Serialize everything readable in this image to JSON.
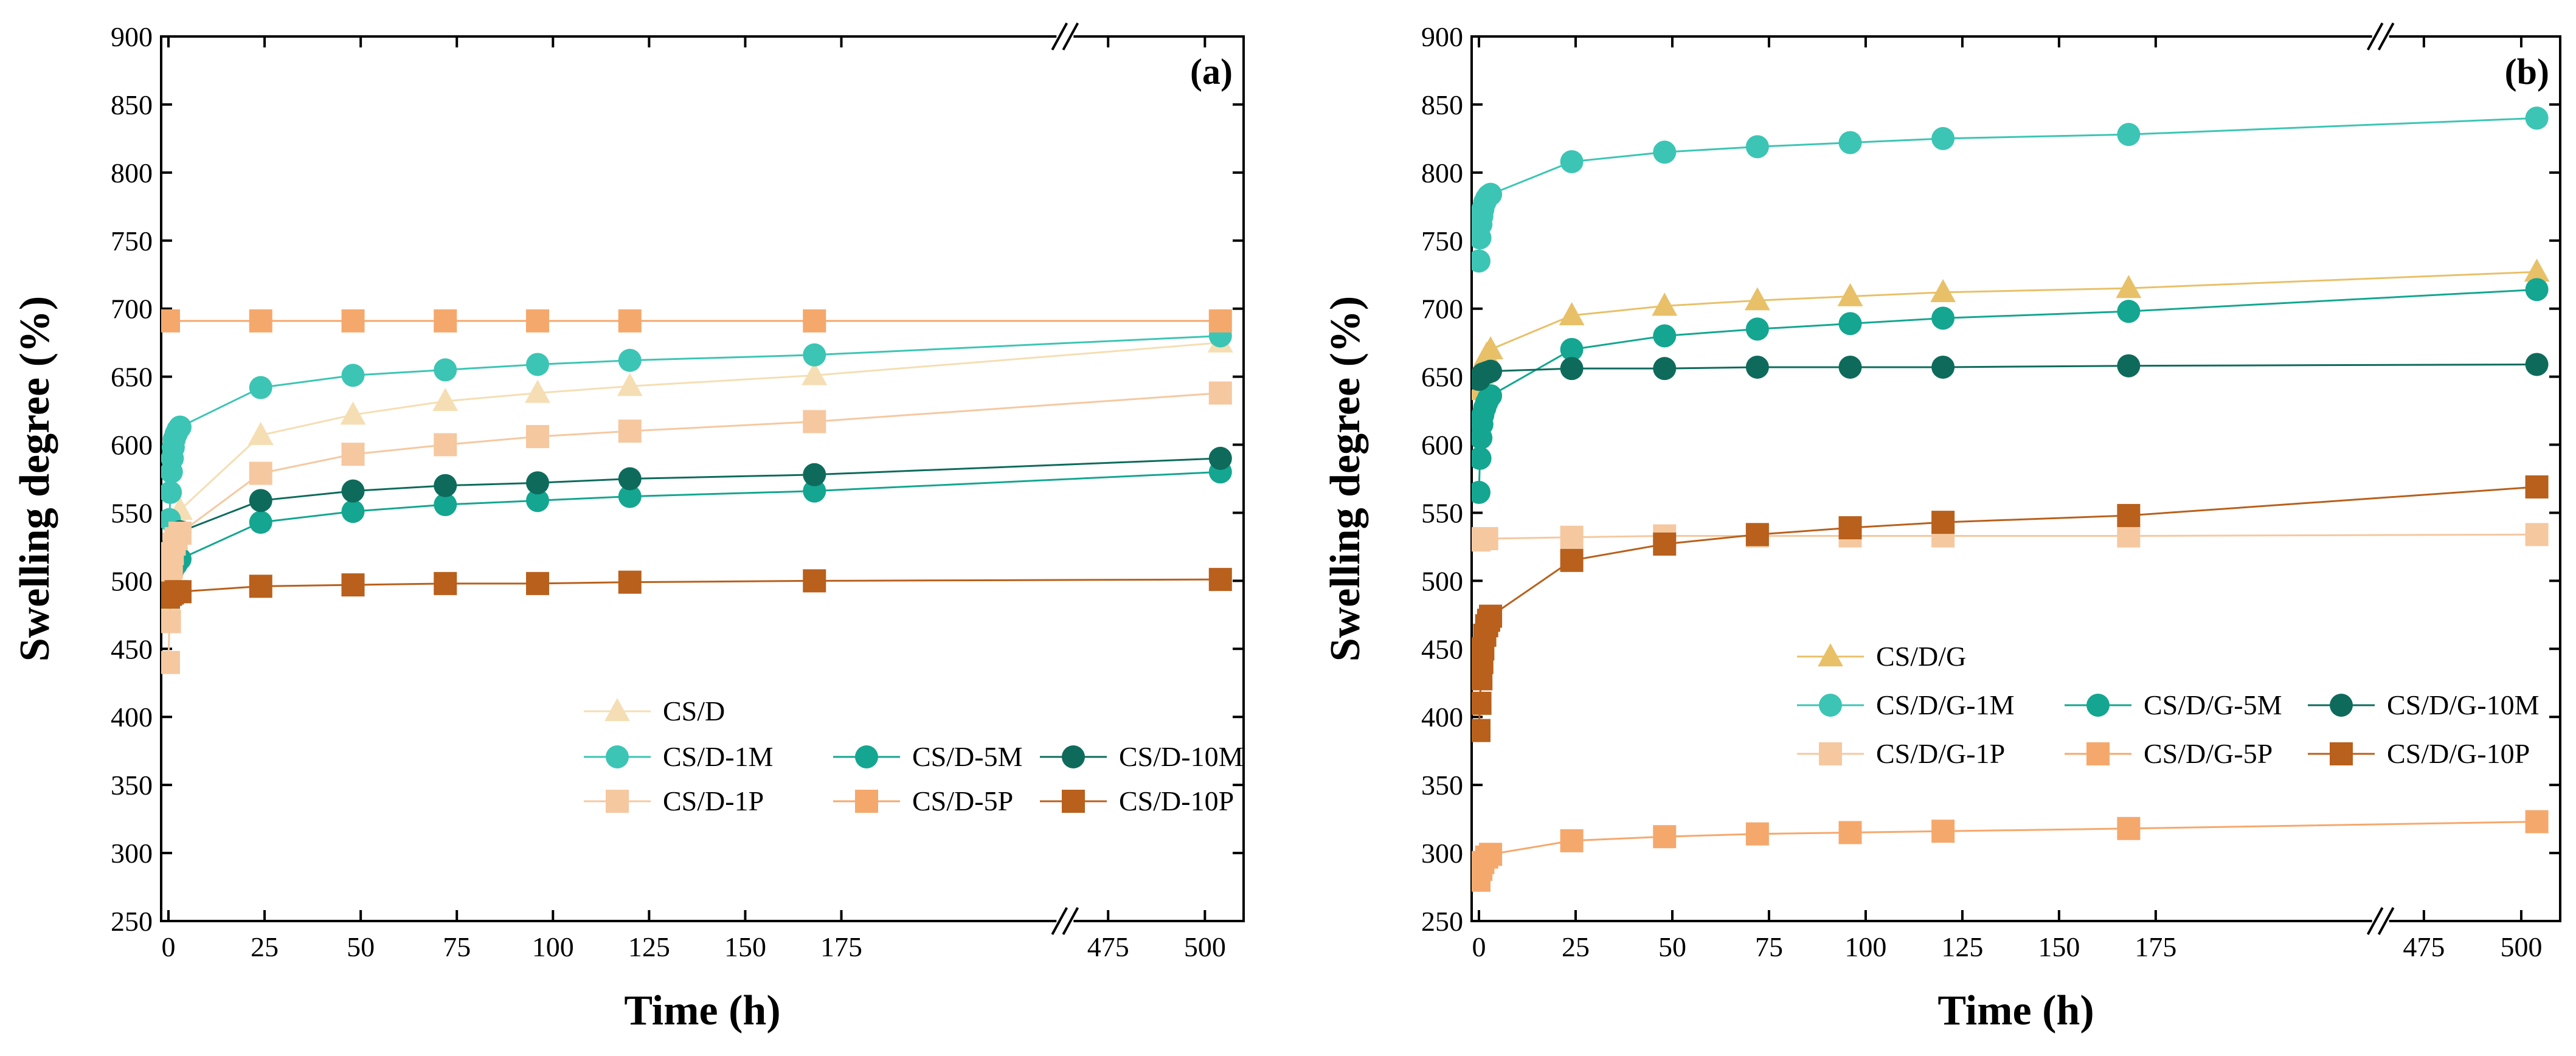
{
  "chart_data": [
    {
      "type": "line",
      "panel": "(a)",
      "xlabel": "Time (h)",
      "ylabel": "Swelling degree (%)",
      "ylim": [
        250,
        900
      ],
      "yticks": [
        250,
        300,
        350,
        400,
        450,
        500,
        550,
        600,
        650,
        700,
        750,
        800,
        850,
        900
      ],
      "xticks": [
        "0",
        "25",
        "50",
        "75",
        "100",
        "125",
        "150",
        "175",
        "475",
        "500"
      ],
      "x_break": "//",
      "legend_placement": "lower-right",
      "series": [
        {
          "name": "CS/D",
          "color": "#F5DEB3",
          "marker": "triangle",
          "points": [
            [
              0,
              485
            ],
            [
              0.25,
              495
            ],
            [
              0.5,
              505
            ],
            [
              1,
              515
            ],
            [
              1.5,
              525
            ],
            [
              2,
              535
            ],
            [
              2.5,
              545
            ],
            [
              3,
              552
            ],
            [
              24,
              607
            ],
            [
              48,
              622
            ],
            [
              72,
              632
            ],
            [
              96,
              638
            ],
            [
              120,
              643
            ],
            [
              168,
              651
            ],
            [
              504,
              675
            ]
          ]
        },
        {
          "name": "CS/D-1M",
          "color": "#3CC5B4",
          "marker": "circle",
          "points": [
            [
              0,
              520
            ],
            [
              0.25,
              545
            ],
            [
              0.5,
              565
            ],
            [
              0.75,
              580
            ],
            [
              1,
              590
            ],
            [
              1.25,
              598
            ],
            [
              1.5,
              604
            ],
            [
              2,
              608
            ],
            [
              2.5,
              611
            ],
            [
              3,
              613
            ],
            [
              24,
              642
            ],
            [
              48,
              651
            ],
            [
              72,
              655
            ],
            [
              96,
              659
            ],
            [
              120,
              662
            ],
            [
              168,
              666
            ],
            [
              504,
              680
            ]
          ]
        },
        {
          "name": "CS/D-5M",
          "color": "#14A690",
          "marker": "circle",
          "points": [
            [
              0,
              490
            ],
            [
              0.25,
              497
            ],
            [
              0.5,
              502
            ],
            [
              1,
              507
            ],
            [
              2,
              512
            ],
            [
              3,
              516
            ],
            [
              24,
              543
            ],
            [
              48,
              551
            ],
            [
              72,
              556
            ],
            [
              96,
              559
            ],
            [
              120,
              562
            ],
            [
              168,
              566
            ],
            [
              504,
              580
            ]
          ]
        },
        {
          "name": "CS/D-10M",
          "color": "#0E6B5C",
          "marker": "circle",
          "points": [
            [
              0,
              505
            ],
            [
              0.5,
              515
            ],
            [
              1,
              525
            ],
            [
              2,
              532
            ],
            [
              3,
              536
            ],
            [
              24,
              559
            ],
            [
              48,
              566
            ],
            [
              72,
              570
            ],
            [
              96,
              572
            ],
            [
              120,
              575
            ],
            [
              168,
              578
            ],
            [
              504,
              590
            ]
          ]
        },
        {
          "name": "CS/D-1P",
          "color": "#F5C8A0",
          "marker": "square",
          "points": [
            [
              0,
              440
            ],
            [
              0.25,
              470
            ],
            [
              0.5,
              495
            ],
            [
              0.75,
              510
            ],
            [
              1,
              520
            ],
            [
              1.5,
              527
            ],
            [
              2,
              531
            ],
            [
              3,
              535
            ],
            [
              24,
              579
            ],
            [
              48,
              593
            ],
            [
              72,
              600
            ],
            [
              96,
              606
            ],
            [
              120,
              610
            ],
            [
              168,
              617
            ],
            [
              504,
              638
            ]
          ]
        },
        {
          "name": "CS/D-5P",
          "color": "#F5A86C",
          "marker": "square",
          "points": [
            [
              0,
              691
            ],
            [
              24,
              691
            ],
            [
              48,
              691
            ],
            [
              72,
              691
            ],
            [
              96,
              691
            ],
            [
              120,
              691
            ],
            [
              168,
              691
            ],
            [
              504,
              691
            ]
          ]
        },
        {
          "name": "CS/D-10P",
          "color": "#B8601C",
          "marker": "square",
          "points": [
            [
              0,
              488
            ],
            [
              0.5,
              490
            ],
            [
              1,
              491
            ],
            [
              2,
              492
            ],
            [
              3,
              492
            ],
            [
              24,
              496
            ],
            [
              48,
              497
            ],
            [
              72,
              498
            ],
            [
              96,
              498
            ],
            [
              120,
              499
            ],
            [
              168,
              500
            ],
            [
              504,
              501
            ]
          ]
        }
      ]
    },
    {
      "type": "line",
      "panel": "(b)",
      "xlabel": "Time (h)",
      "ylabel": "Swelling degree (%)",
      "ylim": [
        250,
        900
      ],
      "yticks": [
        250,
        300,
        350,
        400,
        450,
        500,
        550,
        600,
        650,
        700,
        750,
        800,
        850,
        900
      ],
      "xticks": [
        "0",
        "25",
        "50",
        "75",
        "100",
        "125",
        "150",
        "175",
        "475",
        "500"
      ],
      "x_break": "//",
      "legend_placement": "lower-center",
      "series": [
        {
          "name": "CS/D/G",
          "color": "#E8C068",
          "marker": "triangle",
          "points": [
            [
              0,
              640
            ],
            [
              0.5,
              652
            ],
            [
              1,
              660
            ],
            [
              2,
              666
            ],
            [
              3,
              670
            ],
            [
              24,
              695
            ],
            [
              48,
              702
            ],
            [
              72,
              706
            ],
            [
              96,
              709
            ],
            [
              120,
              712
            ],
            [
              168,
              715
            ],
            [
              504,
              727
            ]
          ]
        },
        {
          "name": "CS/D/G-1M",
          "color": "#3CC5B4",
          "marker": "circle",
          "points": [
            [
              0,
              735
            ],
            [
              0.25,
              752
            ],
            [
              0.5,
              762
            ],
            [
              0.75,
              768
            ],
            [
              1,
              773
            ],
            [
              1.5,
              778
            ],
            [
              2,
              781
            ],
            [
              2.5,
              783
            ],
            [
              3,
              784
            ],
            [
              24,
              808
            ],
            [
              48,
              815
            ],
            [
              72,
              819
            ],
            [
              96,
              822
            ],
            [
              120,
              825
            ],
            [
              168,
              828
            ],
            [
              504,
              840
            ]
          ]
        },
        {
          "name": "CS/D/G-5M",
          "color": "#14A690",
          "marker": "circle",
          "points": [
            [
              0,
              565
            ],
            [
              0.25,
              590
            ],
            [
              0.5,
              605
            ],
            [
              0.75,
              615
            ],
            [
              1,
              622
            ],
            [
              1.5,
              627
            ],
            [
              2,
              631
            ],
            [
              2.5,
              634
            ],
            [
              3,
              636
            ],
            [
              24,
              670
            ],
            [
              48,
              680
            ],
            [
              72,
              685
            ],
            [
              96,
              689
            ],
            [
              120,
              693
            ],
            [
              168,
              698
            ],
            [
              504,
              714
            ]
          ]
        },
        {
          "name": "CS/D/G-10M",
          "color": "#0E6B5C",
          "marker": "circle",
          "points": [
            [
              0,
              648
            ],
            [
              0.5,
              650
            ],
            [
              1,
              652
            ],
            [
              2,
              653
            ],
            [
              3,
              654
            ],
            [
              24,
              656
            ],
            [
              48,
              656
            ],
            [
              72,
              657
            ],
            [
              96,
              657
            ],
            [
              120,
              657
            ],
            [
              168,
              658
            ],
            [
              504,
              659
            ]
          ]
        },
        {
          "name": "CS/D/G-1P",
          "color": "#F5C8A0",
          "marker": "square",
          "points": [
            [
              0,
              530
            ],
            [
              1,
              531
            ],
            [
              2,
              531
            ],
            [
              24,
              532
            ],
            [
              48,
              533
            ],
            [
              72,
              533
            ],
            [
              96,
              533
            ],
            [
              120,
              533
            ],
            [
              168,
              533
            ],
            [
              504,
              534
            ]
          ]
        },
        {
          "name": "CS/D/G-5P",
          "color": "#F5A86C",
          "marker": "square",
          "points": [
            [
              0,
              280
            ],
            [
              0.5,
              288
            ],
            [
              1,
              293
            ],
            [
              2,
              297
            ],
            [
              3,
              299
            ],
            [
              24,
              309
            ],
            [
              48,
              312
            ],
            [
              72,
              314
            ],
            [
              96,
              315
            ],
            [
              120,
              316
            ],
            [
              168,
              318
            ],
            [
              504,
              323
            ]
          ]
        },
        {
          "name": "CS/D/G-10P",
          "color": "#B8601C",
          "marker": "square",
          "points": [
            [
              0,
              390
            ],
            [
              0.25,
              410
            ],
            [
              0.5,
              428
            ],
            [
              0.75,
              440
            ],
            [
              1,
              450
            ],
            [
              1.5,
              460
            ],
            [
              2,
              467
            ],
            [
              2.5,
              471
            ],
            [
              3,
              474
            ],
            [
              24,
              515
            ],
            [
              48,
              527
            ],
            [
              72,
              534
            ],
            [
              96,
              539
            ],
            [
              120,
              543
            ],
            [
              168,
              548
            ],
            [
              504,
              569
            ]
          ]
        }
      ]
    }
  ]
}
